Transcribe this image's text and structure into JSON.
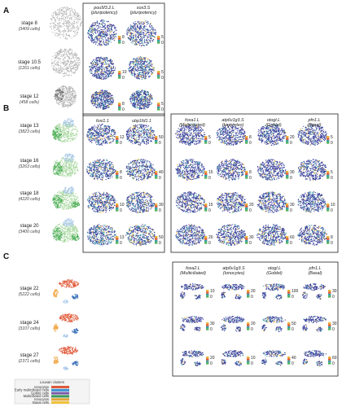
{
  "panels": [
    {
      "label": "A",
      "stages": [
        {
          "name": "stage 8",
          "cells": "(3409 cells)"
        },
        {
          "name": "stage 10.5",
          "cells": "(1261 cells)"
        },
        {
          "name": "stage 12",
          "cells": "(458 cells)"
        }
      ],
      "genes": [
        {
          "name": "pou5f3.2.L",
          "sub": "(pluripotency)"
        },
        {
          "name": "sox3.S",
          "sub": "(pluripotency)"
        }
      ],
      "scales": [
        [
          [
            "8",
            "0"
          ],
          [
            "5",
            "0"
          ]
        ],
        [
          [
            "10",
            "0"
          ],
          [
            "5",
            "0"
          ]
        ],
        [
          [
            "8",
            "0"
          ],
          [
            "5",
            "0"
          ]
        ]
      ]
    },
    {
      "label": "B",
      "stages": [
        {
          "name": "stage 13",
          "cells": "(3823 cells)"
        },
        {
          "name": "stage 16",
          "cells": "(3263 cells)"
        },
        {
          "name": "stage 18",
          "cells": "(4220 cells)"
        },
        {
          "name": "stage 20",
          "cells": "(3400 cells)"
        }
      ],
      "genes_left": [
        {
          "name": "foxi1.1",
          "sub": ""
        },
        {
          "name": "ubp1fd1.1",
          "sub": ""
        }
      ],
      "genes_right": [
        {
          "name": "foxa1.L",
          "sub": "(Multiciliated)"
        },
        {
          "name": "atp6v1g3.S",
          "sub": "(Ionocytes)"
        },
        {
          "name": "otogl.L",
          "sub": "(Goblet)"
        },
        {
          "name": "pfn1.L",
          "sub": "(Basal)"
        }
      ],
      "scales_left": [
        [
          [
            "12",
            "0"
          ],
          [
            "50",
            "0"
          ]
        ],
        [
          [
            "8",
            "0"
          ],
          [
            "40",
            "0"
          ]
        ],
        [
          [
            "10",
            "0"
          ],
          [
            "30",
            "0"
          ]
        ],
        [
          [
            "13",
            "0"
          ],
          [
            "50",
            "0"
          ]
        ]
      ],
      "scales_right": [
        [
          [
            "5",
            "0"
          ],
          [
            "8",
            "0"
          ],
          [
            "20",
            "0"
          ],
          [
            "5",
            "0"
          ]
        ],
        [
          [
            "15",
            "0"
          ],
          [
            "8",
            "0"
          ],
          [
            "30",
            "0"
          ],
          [
            "5",
            "0"
          ]
        ],
        [
          [
            "15",
            "0"
          ],
          [
            "20",
            "0"
          ],
          [
            "30",
            "0"
          ],
          [
            "10",
            "0"
          ]
        ],
        [
          [
            "20",
            "0"
          ],
          [
            "30",
            "0"
          ],
          [
            "60",
            "0"
          ],
          [
            "8",
            "0"
          ]
        ]
      ]
    },
    {
      "label": "C",
      "stages": [
        {
          "name": "stage 22",
          "cells": "(5222 cells)"
        },
        {
          "name": "stage 24",
          "cells": "(3107 cells)"
        },
        {
          "name": "stage 27",
          "cells": "(2371 cells)"
        }
      ],
      "genes": [
        {
          "name": "foxa2.L",
          "sub": "(Multiciliated)"
        },
        {
          "name": "atp6v1g3.S",
          "sub": "(Ionocytes)"
        },
        {
          "name": "otogl.L",
          "sub": "(Goblet)"
        },
        {
          "name": "pfn1.L",
          "sub": "(Basal)"
        }
      ],
      "scales": [
        [
          [
            "10",
            "0"
          ],
          [
            "20",
            "0"
          ],
          [
            "100",
            "0"
          ],
          [
            "30",
            "0"
          ]
        ],
        [
          [
            "30",
            "0"
          ],
          [
            "20",
            "0"
          ],
          [
            "50",
            "0"
          ],
          [
            "30",
            "0"
          ]
        ],
        [
          [
            "20",
            "0"
          ],
          [
            "10",
            "0"
          ],
          [
            "40",
            "0"
          ],
          [
            "60",
            "0"
          ]
        ]
      ]
    }
  ],
  "legend": {
    "title": "Louvain clusters",
    "items": [
      {
        "label": "Ionocytes",
        "color": "#e05a3a"
      },
      {
        "label": "Early multiciliated cells",
        "color": "#3a8fd0"
      },
      {
        "label": "Goblet cells",
        "color": "#7a5aa8"
      },
      {
        "label": "Multiciliated cells",
        "color": "#3c9a5a"
      },
      {
        "label": "Ionocytes",
        "color": "#e3a63a"
      },
      {
        "label": "Basal cells",
        "color": "#f0c23a"
      }
    ]
  },
  "colors": {
    "expr_low": "#3a3f9c",
    "expr_mid": "#3aa0a8",
    "expr_high": "#e8b23a",
    "grey_cells": "#b5b5b5",
    "cluster_green": "#4fb05a",
    "cluster_lightgreen": "#a9d7a0",
    "cluster_lightblue": "#a8c8e8",
    "cluster_red": "#e05a3a",
    "cluster_orange": "#f0a23a",
    "cluster_blue": "#3a6fb8"
  }
}
